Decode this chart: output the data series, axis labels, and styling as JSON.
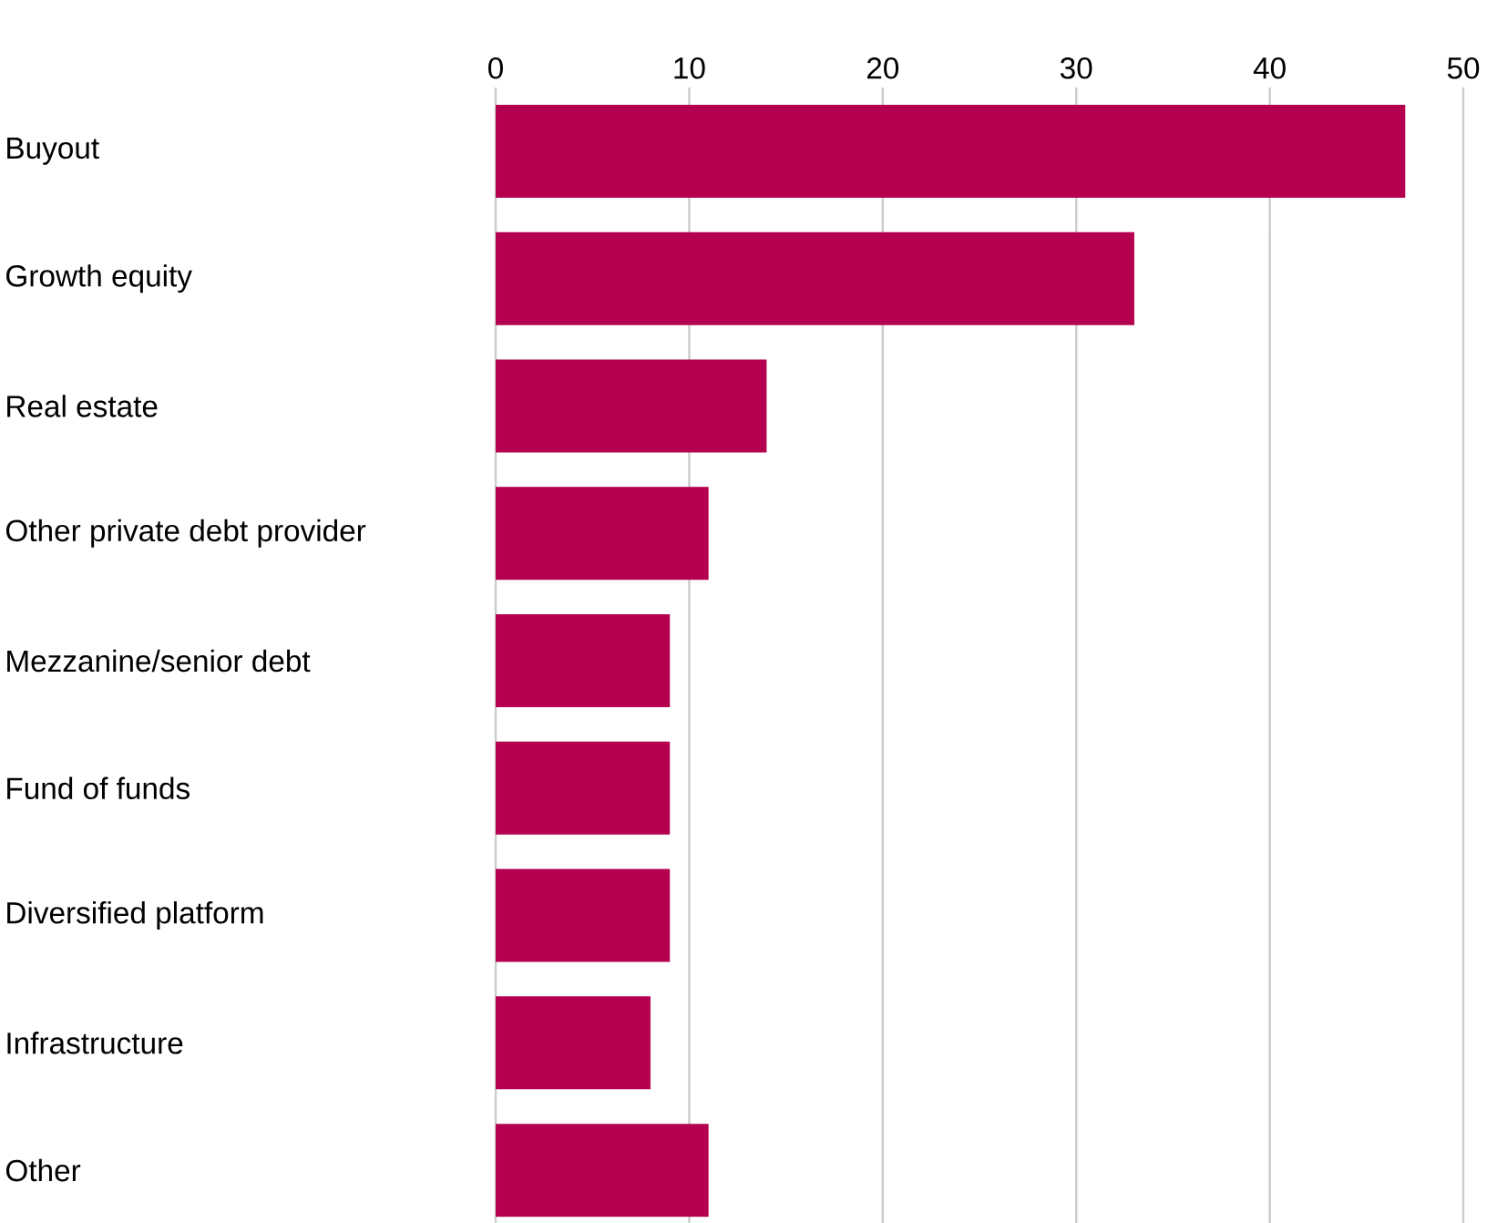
{
  "chart_data": {
    "type": "bar",
    "orientation": "horizontal",
    "categories": [
      "Buyout",
      "Growth equity",
      "Real estate",
      "Other private debt provider",
      "Mezzanine/senior debt",
      "Fund of funds",
      "Diversified platform",
      "Infrastructure",
      "Other"
    ],
    "values": [
      47,
      33,
      14,
      11,
      9,
      9,
      9,
      8,
      11
    ],
    "color": "#b5004f",
    "xlim": [
      0,
      50
    ],
    "xticks": [
      0,
      10,
      20,
      30,
      40,
      50
    ],
    "grid": "x"
  }
}
